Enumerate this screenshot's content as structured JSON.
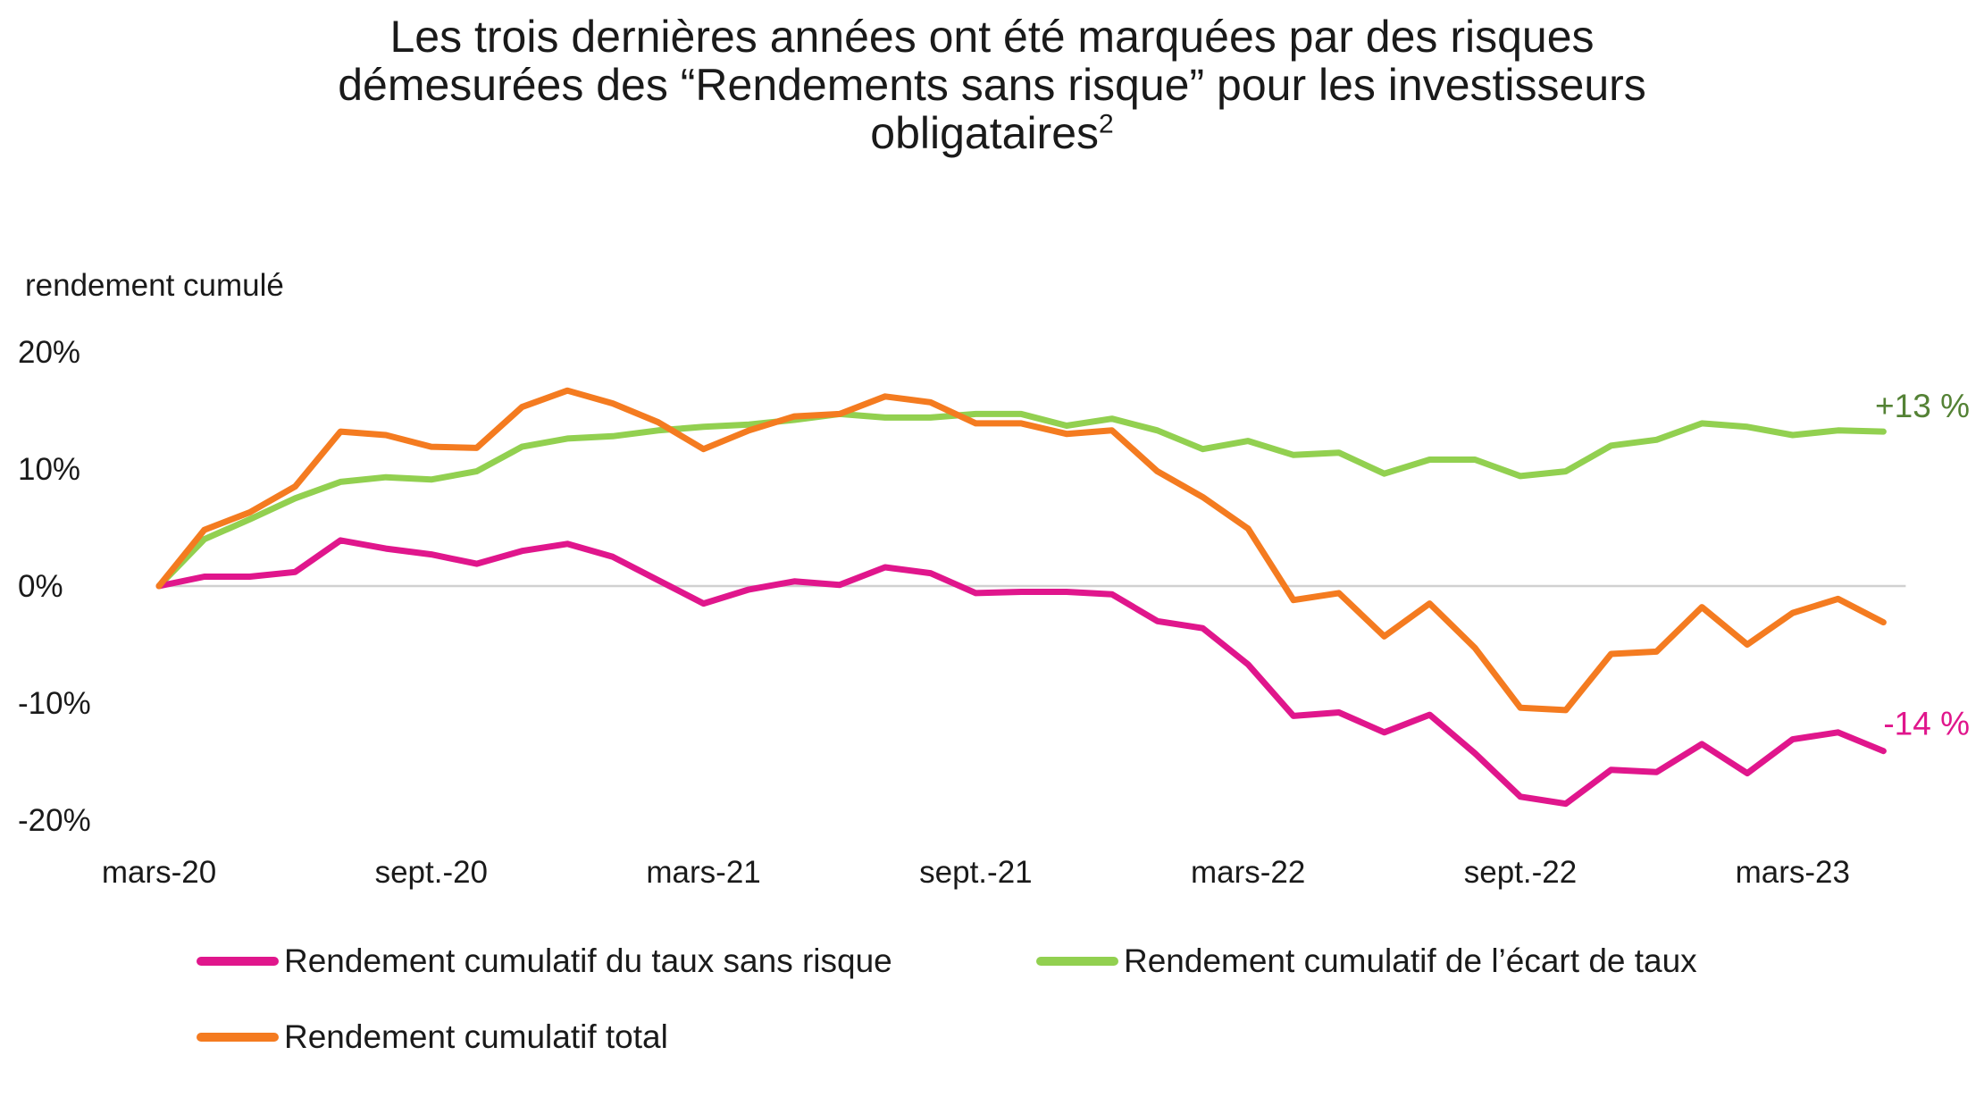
{
  "title": {
    "line1": "Les trois dernières années ont été marquées par des risques",
    "line2": "démesurées des “Rendements sans risque” pour les investisseurs",
    "line3": "obligataires",
    "superscript": "2"
  },
  "chart_data": {
    "type": "line",
    "ylabel": "rendement cumulé",
    "xlabel": "",
    "ylim": [
      -20,
      20
    ],
    "yticks": [
      20,
      10,
      0,
      -10,
      -20
    ],
    "ytick_labels": [
      "20%",
      "10%",
      "0%",
      "-10%",
      "-20%"
    ],
    "xtick_labels": [
      "mars-20",
      "sept.-20",
      "mars-21",
      "sept.-21",
      "mars-22",
      "sept.-22",
      "mars-23"
    ],
    "xtick_indices": [
      0,
      6,
      12,
      18,
      24,
      30,
      36
    ],
    "zero_line": true,
    "series": [
      {
        "name": "Rendement cumulatif du taux sans risque",
        "color": "#e0168c",
        "end_label": "-14 %",
        "values": [
          0.0,
          0.8,
          0.8,
          1.2,
          3.9,
          3.2,
          2.7,
          1.9,
          3.0,
          3.6,
          2.5,
          0.5,
          -1.5,
          -0.3,
          0.4,
          0.1,
          1.6,
          1.1,
          -0.6,
          -0.5,
          -0.5,
          -0.7,
          -3.0,
          -3.6,
          -6.7,
          -11.1,
          -10.8,
          -12.5,
          -11.0,
          -14.3,
          -18.0,
          -18.6,
          -15.7,
          -15.9,
          -13.5,
          -16.0,
          -13.1,
          -12.5,
          -14.1
        ]
      },
      {
        "name": "Rendement cumulatif de l’écart de taux",
        "color": "#92d050",
        "end_label": "+13 %",
        "values": [
          0.0,
          4.0,
          5.7,
          7.5,
          8.9,
          9.3,
          9.1,
          9.8,
          11.9,
          12.6,
          12.8,
          13.3,
          13.6,
          13.8,
          14.2,
          14.7,
          14.4,
          14.4,
          14.7,
          14.7,
          13.7,
          14.3,
          13.3,
          11.7,
          12.4,
          11.2,
          11.4,
          9.6,
          10.8,
          10.8,
          9.4,
          9.8,
          12.0,
          12.5,
          13.9,
          13.6,
          12.9,
          13.3,
          13.2
        ]
      },
      {
        "name": "Rendement cumulatif total",
        "color": "#f47b20",
        "values": [
          0.0,
          4.8,
          6.3,
          8.5,
          13.2,
          12.9,
          11.9,
          11.8,
          15.3,
          16.7,
          15.6,
          14.0,
          11.7,
          13.3,
          14.5,
          14.7,
          16.2,
          15.7,
          13.9,
          13.9,
          13.0,
          13.3,
          9.8,
          7.6,
          4.9,
          -1.2,
          -0.6,
          -4.3,
          -1.5,
          -5.3,
          -10.4,
          -10.6,
          -5.8,
          -5.6,
          -1.8,
          -5.0,
          -2.3,
          -1.1,
          -3.1
        ]
      }
    ],
    "legend_position": "bottom"
  },
  "colors": {
    "zero_line": "#d0d0d0",
    "text": "#1a1a1a",
    "end_label_pos": "#548235",
    "end_label_neg": "#e0168c"
  }
}
